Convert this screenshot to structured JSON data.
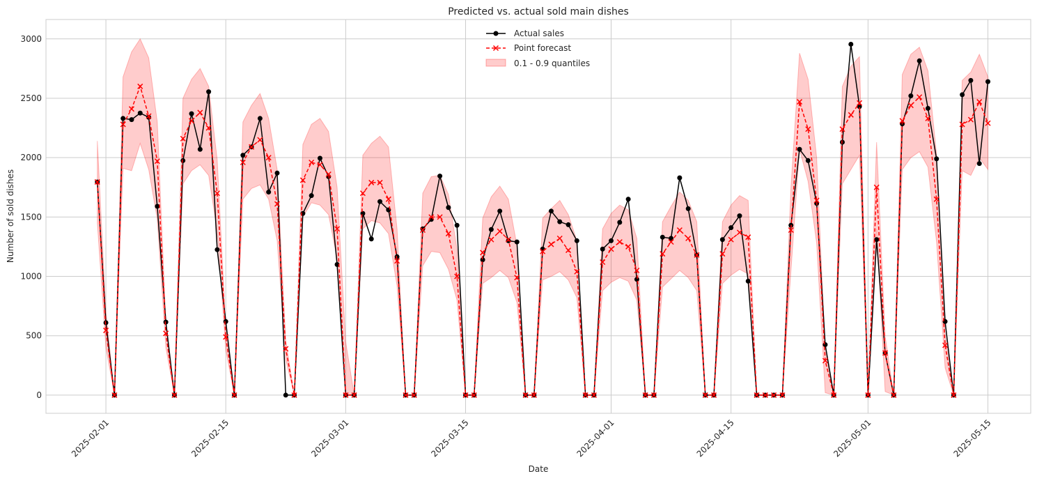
{
  "chart_data": {
    "type": "line",
    "title": "Predicted vs. actual sold main dishes",
    "xlabel": "Date",
    "ylabel": "Number of sold dishes",
    "xlim": [
      "2025-01-25",
      "2025-05-20"
    ],
    "ylim": [
      -153,
      3163
    ],
    "grid": true,
    "legend_position": "top-center",
    "x_ticks": [
      "2025-02-01",
      "2025-02-15",
      "2025-03-01",
      "2025-03-15",
      "2025-04-01",
      "2025-04-15",
      "2025-05-01",
      "2025-05-15"
    ],
    "y_ticks": [
      0,
      500,
      1000,
      1500,
      2000,
      2500,
      3000
    ],
    "dates": [
      "2025-01-31",
      "2025-02-01",
      "2025-02-02",
      "2025-02-03",
      "2025-02-04",
      "2025-02-05",
      "2025-02-06",
      "2025-02-07",
      "2025-02-08",
      "2025-02-09",
      "2025-02-10",
      "2025-02-11",
      "2025-02-12",
      "2025-02-13",
      "2025-02-14",
      "2025-02-15",
      "2025-02-16",
      "2025-02-17",
      "2025-02-18",
      "2025-02-19",
      "2025-02-20",
      "2025-02-21",
      "2025-02-22",
      "2025-02-23",
      "2025-02-24",
      "2025-02-25",
      "2025-02-26",
      "2025-02-27",
      "2025-02-28",
      "2025-03-01",
      "2025-03-02",
      "2025-03-03",
      "2025-03-04",
      "2025-03-05",
      "2025-03-06",
      "2025-03-07",
      "2025-03-08",
      "2025-03-09",
      "2025-03-10",
      "2025-03-11",
      "2025-03-12",
      "2025-03-13",
      "2025-03-14",
      "2025-03-15",
      "2025-03-16",
      "2025-03-17",
      "2025-03-18",
      "2025-03-19",
      "2025-03-20",
      "2025-03-21",
      "2025-03-22",
      "2025-03-23",
      "2025-03-24",
      "2025-03-25",
      "2025-03-26",
      "2025-03-27",
      "2025-03-28",
      "2025-03-29",
      "2025-03-30",
      "2025-03-31",
      "2025-04-01",
      "2025-04-02",
      "2025-04-03",
      "2025-04-04",
      "2025-04-05",
      "2025-04-06",
      "2025-04-07",
      "2025-04-08",
      "2025-04-09",
      "2025-04-10",
      "2025-04-11",
      "2025-04-12",
      "2025-04-13",
      "2025-04-14",
      "2025-04-15",
      "2025-04-16",
      "2025-04-17",
      "2025-04-18",
      "2025-04-19",
      "2025-04-20",
      "2025-04-21",
      "2025-04-22",
      "2025-04-23",
      "2025-04-24",
      "2025-04-25",
      "2025-04-26",
      "2025-04-27",
      "2025-04-28",
      "2025-04-29",
      "2025-04-30",
      "2025-05-01",
      "2025-05-02",
      "2025-05-03",
      "2025-05-04",
      "2025-05-05",
      "2025-05-06",
      "2025-05-07",
      "2025-05-08",
      "2025-05-09",
      "2025-05-10",
      "2025-05-11",
      "2025-05-12",
      "2025-05-13",
      "2025-05-14",
      "2025-05-15"
    ],
    "series": [
      {
        "name": "Actual sales",
        "color": "#000000",
        "style": "solid",
        "marker": "circle",
        "values": [
          1795,
          610,
          0,
          2330,
          2320,
          2375,
          2340,
          1590,
          615,
          0,
          1975,
          2370,
          2070,
          2555,
          1225,
          620,
          0,
          2020,
          2090,
          2330,
          1710,
          1870,
          0,
          0,
          1530,
          1680,
          1995,
          1840,
          1100,
          0,
          0,
          1530,
          1315,
          1630,
          1560,
          1165,
          0,
          0,
          1400,
          1480,
          1845,
          1580,
          1430,
          0,
          0,
          1140,
          1395,
          1550,
          1300,
          1290,
          0,
          0,
          1230,
          1550,
          1460,
          1435,
          1300,
          0,
          0,
          1230,
          1300,
          1455,
          1650,
          975,
          0,
          0,
          1330,
          1320,
          1830,
          1570,
          1180,
          0,
          0,
          1310,
          1410,
          1510,
          960,
          0,
          0,
          0,
          0,
          1430,
          2070,
          1975,
          1615,
          425,
          0,
          2130,
          2955,
          2430,
          0,
          1310,
          355,
          0,
          2285,
          2520,
          2815,
          2415,
          1990,
          620,
          0,
          2530,
          2650,
          1950,
          2640
        ]
      },
      {
        "name": "Point forecast",
        "color": "#ff0000",
        "style": "dashed",
        "marker": "x",
        "values": [
          1795,
          545,
          0,
          2280,
          2410,
          2600,
          2350,
          1970,
          520,
          0,
          2160,
          2310,
          2380,
          2250,
          1700,
          490,
          0,
          1960,
          2090,
          2150,
          2000,
          1610,
          390,
          0,
          1810,
          1960,
          1940,
          1860,
          1400,
          0,
          0,
          1700,
          1790,
          1790,
          1650,
          1130,
          0,
          0,
          1390,
          1500,
          1500,
          1360,
          1000,
          0,
          0,
          1200,
          1310,
          1380,
          1310,
          990,
          0,
          0,
          1210,
          1270,
          1320,
          1220,
          1040,
          0,
          0,
          1120,
          1230,
          1290,
          1250,
          1050,
          0,
          0,
          1190,
          1290,
          1390,
          1320,
          1180,
          0,
          0,
          1190,
          1310,
          1370,
          1330,
          0,
          0,
          0,
          0,
          1390,
          2470,
          2240,
          1640,
          290,
          0,
          2240,
          2360,
          2460,
          0,
          1750,
          355,
          0,
          2310,
          2440,
          2510,
          2330,
          1650,
          420,
          0,
          2280,
          2320,
          2470,
          2290
        ]
      }
    ],
    "band": {
      "name": "0.1 - 0.9 quantiles",
      "color": "#ff0000",
      "opacity": 0.2,
      "lower": [
        1450,
        400,
        0,
        1910,
        1890,
        2120,
        1900,
        1480,
        400,
        0,
        1780,
        1890,
        1940,
        1850,
        1380,
        380,
        0,
        1650,
        1740,
        1770,
        1650,
        1300,
        300,
        0,
        1500,
        1620,
        1600,
        1520,
        1150,
        0,
        0,
        1400,
        1470,
        1450,
        1360,
        920,
        0,
        0,
        1090,
        1210,
        1200,
        1060,
        800,
        0,
        0,
        940,
        990,
        1050,
        990,
        780,
        0,
        0,
        970,
        1000,
        1040,
        970,
        820,
        0,
        0,
        880,
        950,
        990,
        960,
        800,
        0,
        0,
        910,
        980,
        1050,
        990,
        880,
        0,
        0,
        940,
        1010,
        1060,
        1020,
        0,
        0,
        0,
        0,
        1050,
        2070,
        1800,
        1280,
        20,
        0,
        1780,
        1900,
        2020,
        0,
        1400,
        30,
        0,
        1900,
        2000,
        2050,
        1920,
        1290,
        230,
        0,
        1890,
        1850,
        2000,
        1900
      ],
      "upper": [
        2140,
        700,
        0,
        2680,
        2890,
        3000,
        2840,
        2300,
        620,
        0,
        2500,
        2660,
        2750,
        2600,
        1980,
        570,
        0,
        2300,
        2440,
        2540,
        2330,
        1900,
        460,
        0,
        2110,
        2280,
        2330,
        2220,
        1750,
        450,
        0,
        2020,
        2120,
        2180,
        2090,
        1400,
        0,
        0,
        1700,
        1840,
        1850,
        1690,
        1230,
        0,
        0,
        1490,
        1670,
        1760,
        1650,
        1260,
        0,
        0,
        1490,
        1570,
        1640,
        1520,
        1300,
        0,
        0,
        1400,
        1530,
        1600,
        1560,
        1320,
        0,
        0,
        1460,
        1590,
        1710,
        1640,
        1460,
        0,
        0,
        1460,
        1600,
        1680,
        1640,
        0,
        0,
        0,
        0,
        1750,
        2880,
        2660,
        2000,
        380,
        0,
        2600,
        2770,
        2850,
        0,
        2130,
        500,
        0,
        2700,
        2870,
        2930,
        2730,
        2030,
        520,
        0,
        2650,
        2720,
        2870,
        2680
      ]
    }
  }
}
